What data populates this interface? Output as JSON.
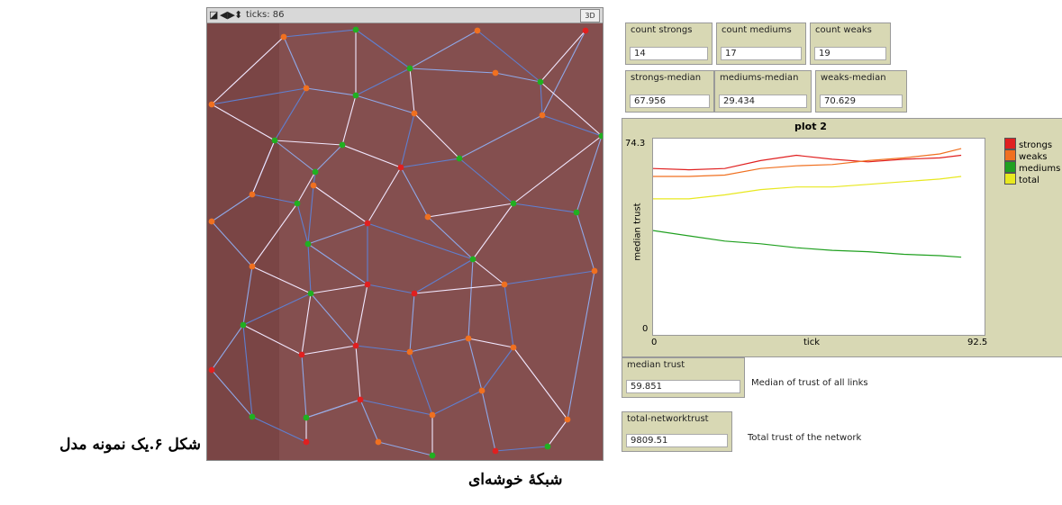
{
  "world": {
    "ticks_label": "ticks: 86",
    "btn_3d": "3D"
  },
  "monitors": {
    "count_strongs": {
      "label": "count strongs",
      "value": "14"
    },
    "count_mediums": {
      "label": "count mediums",
      "value": "17"
    },
    "count_weaks": {
      "label": "count weaks",
      "value": "19"
    },
    "strongs_median": {
      "label": "strongs-median",
      "value": "67.956"
    },
    "mediums_median": {
      "label": "mediums-median",
      "value": "29.434"
    },
    "weaks_median": {
      "label": "weaks-median",
      "value": "70.629"
    },
    "median_trust": {
      "label": "median trust",
      "value": "59.851",
      "note": "Median of trust of all links"
    },
    "total_networktrust": {
      "label": "total-networktrust",
      "value": "9809.51",
      "note": "Total trust of the network"
    }
  },
  "plot": {
    "title": "plot 2",
    "ymax_label": "74.3",
    "ymin_label": "0",
    "xmin_label": "0",
    "xmax_label": "92.5",
    "xlabel": "tick",
    "ylabel": "median trust"
  },
  "chart_data": {
    "type": "line",
    "title": "plot 2",
    "xlabel": "tick",
    "ylabel": "median trust",
    "xlim": [
      0,
      92.5
    ],
    "ylim": [
      0,
      74.3
    ],
    "x": [
      0,
      10,
      20,
      30,
      40,
      50,
      60,
      70,
      80,
      86
    ],
    "series": [
      {
        "name": "strongs",
        "color": "#e02020",
        "values": [
          63,
          62.5,
          63,
          66,
          68,
          66.5,
          65.5,
          66.5,
          67,
          68
        ]
      },
      {
        "name": "weaks",
        "color": "#f07020",
        "values": [
          60,
          60,
          60.5,
          63,
          64,
          64.5,
          66,
          67,
          68.5,
          70.5
        ]
      },
      {
        "name": "mediums",
        "color": "#20a020",
        "values": [
          39.5,
          37.5,
          35.5,
          34.5,
          33,
          32,
          31.5,
          30.5,
          30,
          29.4
        ]
      },
      {
        "name": "total",
        "color": "#e8e820",
        "values": [
          51.5,
          51.5,
          53,
          55,
          56,
          56,
          57,
          58,
          59,
          60
        ]
      }
    ],
    "legend_position": "right"
  },
  "caption": {
    "line1": "شکل ۶.یک نمونه مدل",
    "line2": "شبکۀ خوشه‌ای"
  }
}
